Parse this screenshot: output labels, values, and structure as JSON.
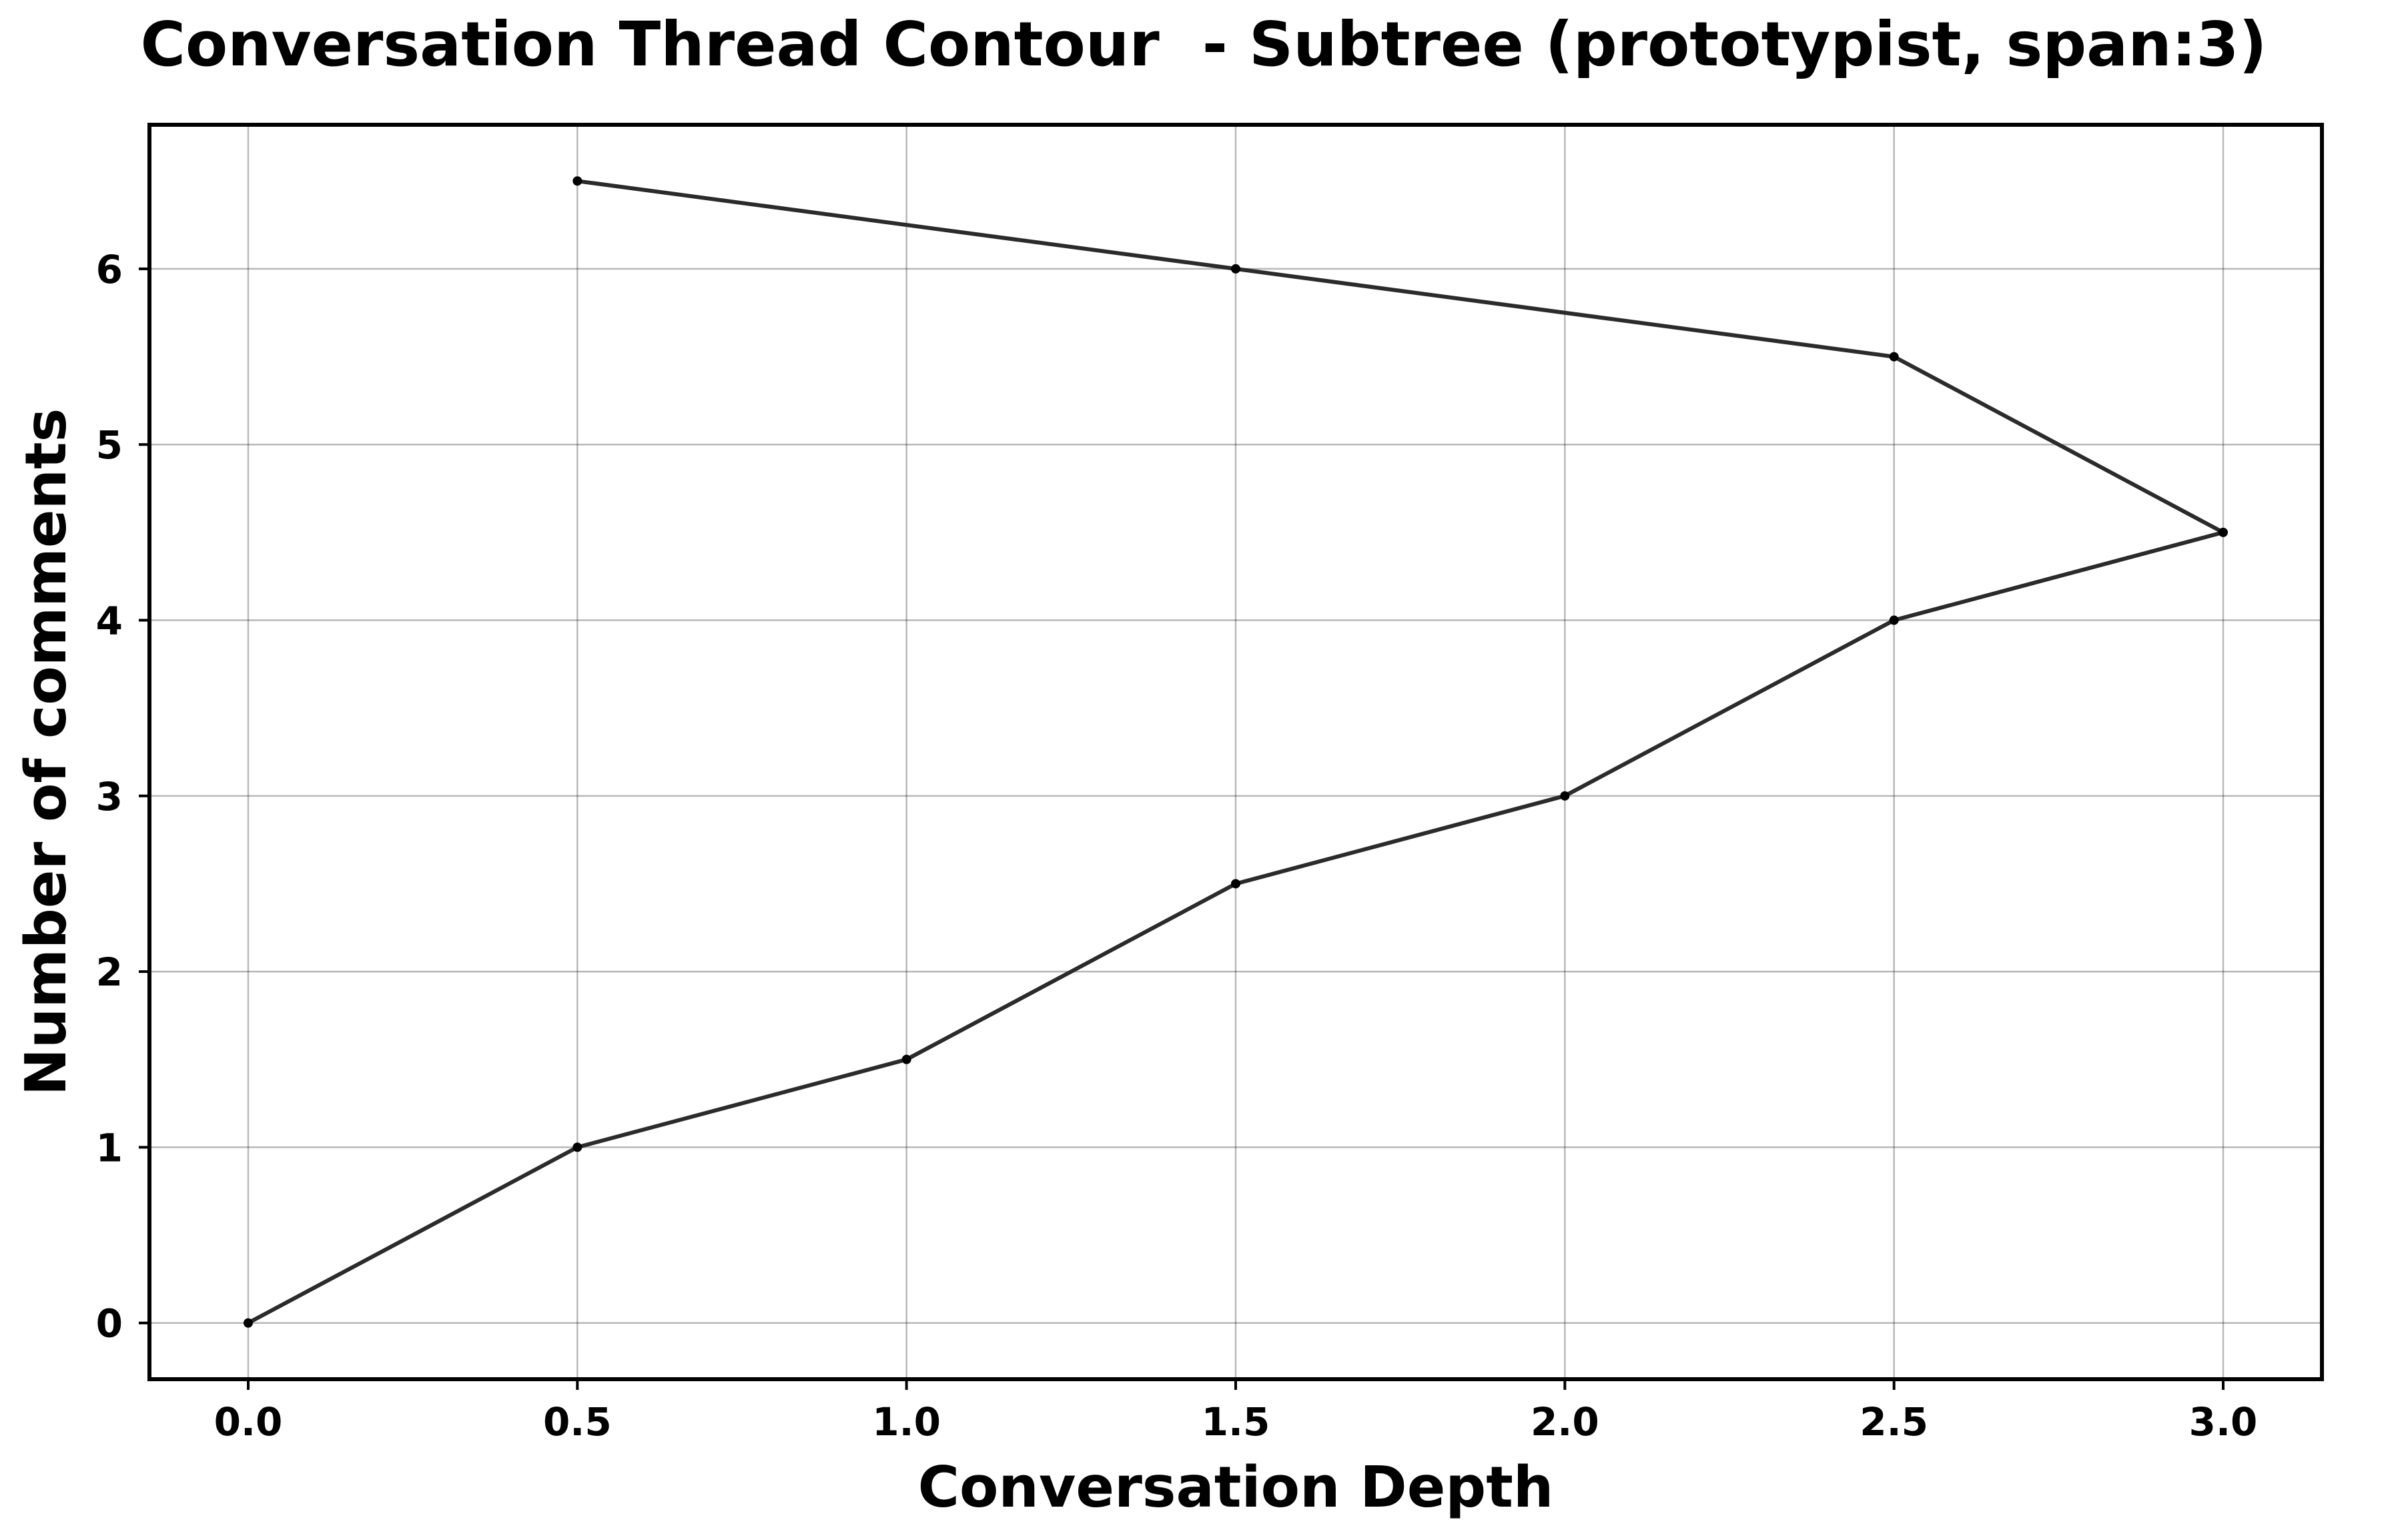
{
  "chart_data": {
    "type": "line",
    "title": "Conversation Thread Contour  - Subtree (prototypist, span:3)",
    "xlabel": "Conversation Depth",
    "ylabel": "Number of comments",
    "xlim": [
      -0.15,
      3.15
    ],
    "ylim": [
      -0.32,
      6.82
    ],
    "xticks": [
      0.0,
      0.5,
      1.0,
      1.5,
      2.0,
      2.5,
      3.0
    ],
    "xtick_labels": [
      "0.0",
      "0.5",
      "1.0",
      "1.5",
      "2.0",
      "2.5",
      "3.0"
    ],
    "yticks": [
      0,
      1,
      2,
      3,
      4,
      5,
      6
    ],
    "ytick_labels": [
      "0",
      "1",
      "2",
      "3",
      "4",
      "5",
      "6"
    ],
    "grid": true,
    "series": [
      {
        "x": [
          0.0,
          0.5,
          1.0,
          1.5,
          2.0,
          2.5,
          3.0,
          2.5,
          1.5,
          0.5
        ],
        "y": [
          0,
          1,
          1.5,
          2.5,
          3,
          4,
          4.5,
          5.5,
          6,
          6.5
        ],
        "color": "#2b2b2b",
        "marker_color": "#000000"
      }
    ]
  }
}
